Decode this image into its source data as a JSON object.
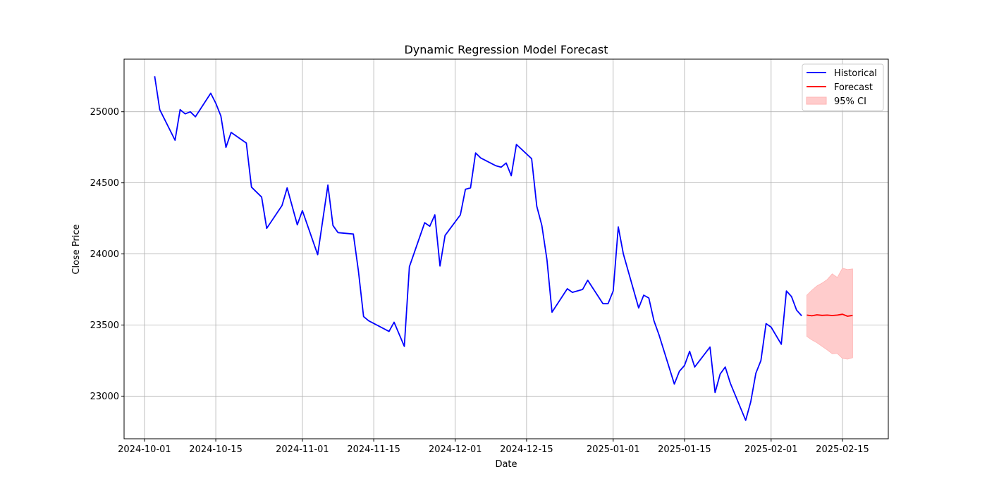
{
  "chart_data": {
    "type": "line",
    "title": "Dynamic Regression Model Forecast",
    "xlabel": "Date",
    "ylabel": "Close Price",
    "xlim": [
      "2024-09-27",
      "2025-02-24"
    ],
    "ylim": [
      22700,
      25370
    ],
    "grid": true,
    "legend_position": "top-right",
    "x_ticks": [
      "2024-10-01",
      "2024-10-15",
      "2024-11-01",
      "2024-11-15",
      "2024-12-01",
      "2024-12-15",
      "2025-01-01",
      "2025-01-15",
      "2025-02-01",
      "2025-02-15"
    ],
    "y_ticks": [
      23000,
      23500,
      24000,
      24500,
      25000
    ],
    "legend": [
      {
        "label": "Historical",
        "type": "line",
        "color": "#0000ff"
      },
      {
        "label": "Forecast",
        "type": "line",
        "color": "#ff0000"
      },
      {
        "label": "95% CI",
        "type": "area",
        "color": "#ffcccc"
      }
    ],
    "series": [
      {
        "name": "Historical",
        "color": "#0000ff",
        "points": [
          [
            "2024-10-03",
            25250
          ],
          [
            "2024-10-04",
            25015
          ],
          [
            "2024-10-07",
            24800
          ],
          [
            "2024-10-08",
            25015
          ],
          [
            "2024-10-09",
            24985
          ],
          [
            "2024-10-10",
            25000
          ],
          [
            "2024-10-11",
            24965
          ],
          [
            "2024-10-14",
            25130
          ],
          [
            "2024-10-15",
            25060
          ],
          [
            "2024-10-16",
            24970
          ],
          [
            "2024-10-17",
            24750
          ],
          [
            "2024-10-18",
            24855
          ],
          [
            "2024-10-21",
            24780
          ],
          [
            "2024-10-22",
            24470
          ],
          [
            "2024-10-24",
            24400
          ],
          [
            "2024-10-25",
            24180
          ],
          [
            "2024-10-28",
            24340
          ],
          [
            "2024-10-29",
            24465
          ],
          [
            "2024-10-31",
            24205
          ],
          [
            "2024-11-01",
            24305
          ],
          [
            "2024-11-04",
            23995
          ],
          [
            "2024-11-06",
            24485
          ],
          [
            "2024-11-07",
            24200
          ],
          [
            "2024-11-08",
            24150
          ],
          [
            "2024-11-11",
            24140
          ],
          [
            "2024-11-12",
            23880
          ],
          [
            "2024-11-13",
            23560
          ],
          [
            "2024-11-14",
            23530
          ],
          [
            "2024-11-18",
            23455
          ],
          [
            "2024-11-19",
            23520
          ],
          [
            "2024-11-21",
            23350
          ],
          [
            "2024-11-22",
            23910
          ],
          [
            "2024-11-25",
            24220
          ],
          [
            "2024-11-26",
            24195
          ],
          [
            "2024-11-27",
            24275
          ],
          [
            "2024-11-28",
            23915
          ],
          [
            "2024-11-29",
            24130
          ],
          [
            "2024-12-02",
            24275
          ],
          [
            "2024-12-03",
            24455
          ],
          [
            "2024-12-04",
            24465
          ],
          [
            "2024-12-05",
            24710
          ],
          [
            "2024-12-06",
            24675
          ],
          [
            "2024-12-09",
            24620
          ],
          [
            "2024-12-10",
            24610
          ],
          [
            "2024-12-11",
            24640
          ],
          [
            "2024-12-12",
            24550
          ],
          [
            "2024-12-13",
            24770
          ],
          [
            "2024-12-16",
            24670
          ],
          [
            "2024-12-17",
            24335
          ],
          [
            "2024-12-18",
            24200
          ],
          [
            "2024-12-19",
            23960
          ],
          [
            "2024-12-20",
            23590
          ],
          [
            "2024-12-23",
            23755
          ],
          [
            "2024-12-24",
            23730
          ],
          [
            "2024-12-26",
            23750
          ],
          [
            "2024-12-27",
            23815
          ],
          [
            "2024-12-30",
            23650
          ],
          [
            "2024-12-31",
            23650
          ],
          [
            "2025-01-01",
            23740
          ],
          [
            "2025-01-02",
            24190
          ],
          [
            "2025-01-03",
            24000
          ],
          [
            "2025-01-06",
            23620
          ],
          [
            "2025-01-07",
            23710
          ],
          [
            "2025-01-08",
            23690
          ],
          [
            "2025-01-09",
            23530
          ],
          [
            "2025-01-10",
            23430
          ],
          [
            "2025-01-13",
            23085
          ],
          [
            "2025-01-14",
            23175
          ],
          [
            "2025-01-15",
            23215
          ],
          [
            "2025-01-16",
            23315
          ],
          [
            "2025-01-17",
            23205
          ],
          [
            "2025-01-20",
            23345
          ],
          [
            "2025-01-21",
            23025
          ],
          [
            "2025-01-22",
            23155
          ],
          [
            "2025-01-23",
            23205
          ],
          [
            "2025-01-24",
            23090
          ],
          [
            "2025-01-27",
            22830
          ],
          [
            "2025-01-28",
            22960
          ],
          [
            "2025-01-29",
            23160
          ],
          [
            "2025-01-30",
            23250
          ],
          [
            "2025-01-31",
            23510
          ],
          [
            "2025-02-01",
            23485
          ],
          [
            "2025-02-03",
            23365
          ],
          [
            "2025-02-04",
            23740
          ],
          [
            "2025-02-05",
            23700
          ],
          [
            "2025-02-06",
            23605
          ],
          [
            "2025-02-07",
            23565
          ]
        ]
      },
      {
        "name": "Forecast",
        "color": "#ff0000",
        "points": [
          [
            "2025-02-08",
            23570
          ],
          [
            "2025-02-09",
            23565
          ],
          [
            "2025-02-10",
            23572
          ],
          [
            "2025-02-11",
            23568
          ],
          [
            "2025-02-12",
            23570
          ],
          [
            "2025-02-13",
            23567
          ],
          [
            "2025-02-14",
            23570
          ],
          [
            "2025-02-15",
            23576
          ],
          [
            "2025-02-16",
            23562
          ],
          [
            "2025-02-17",
            23568
          ]
        ]
      }
    ],
    "ci": {
      "name": "95% CI",
      "color": "#ffcccc",
      "points": [
        [
          "2025-02-08",
          23420,
          23710
        ],
        [
          "2025-02-09",
          23395,
          23745
        ],
        [
          "2025-02-10",
          23375,
          23775
        ],
        [
          "2025-02-11",
          23350,
          23795
        ],
        [
          "2025-02-12",
          23325,
          23820
        ],
        [
          "2025-02-13",
          23298,
          23860
        ],
        [
          "2025-02-14",
          23300,
          23835
        ],
        [
          "2025-02-15",
          23265,
          23900
        ],
        [
          "2025-02-16",
          23260,
          23890
        ],
        [
          "2025-02-17",
          23270,
          23895
        ]
      ]
    }
  }
}
